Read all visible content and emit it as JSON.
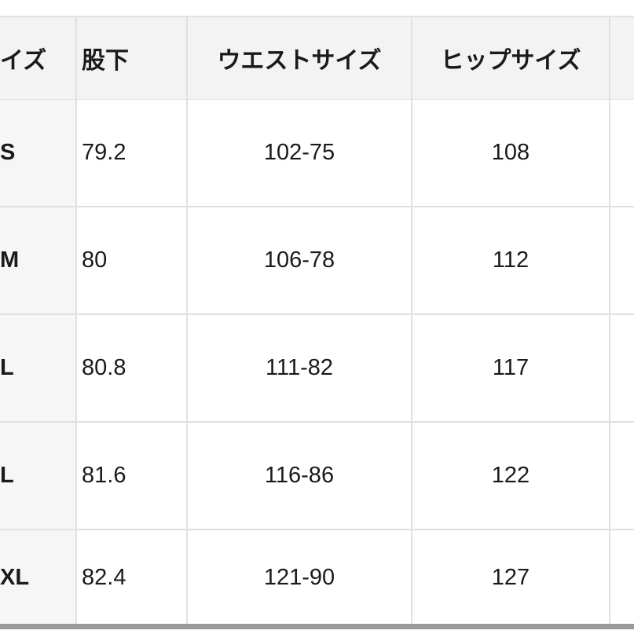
{
  "table": {
    "headers": [
      "イズ",
      "股下",
      "ウエストサイズ",
      "ヒップサイズ",
      ""
    ],
    "rows": [
      {
        "size": "S",
        "inseam": "79.2",
        "waist": "102-75",
        "hip": "108"
      },
      {
        "size": "M",
        "inseam": "80",
        "waist": "106-78",
        "hip": "112"
      },
      {
        "size": "L",
        "inseam": "80.8",
        "waist": "111-82",
        "hip": "117"
      },
      {
        "size": "L",
        "inseam": "81.6",
        "waist": "116-86",
        "hip": "122"
      },
      {
        "size": "XL",
        "inseam": "82.4",
        "waist": "121-90",
        "hip": "127"
      }
    ]
  }
}
